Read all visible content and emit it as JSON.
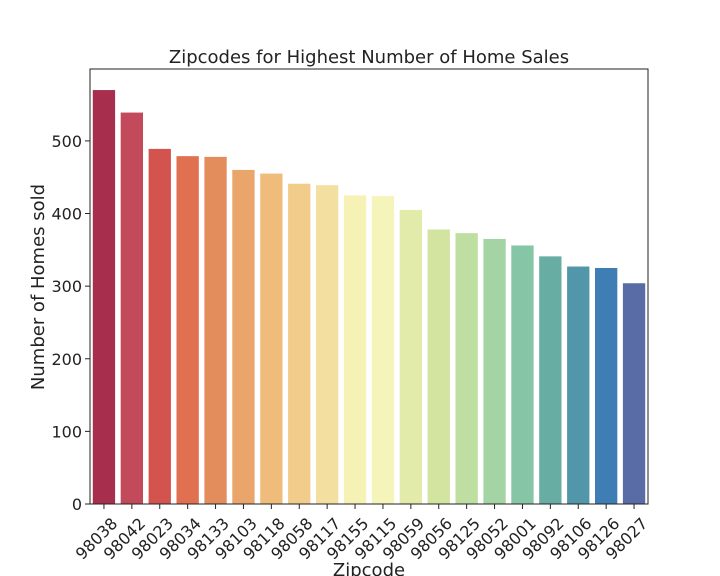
{
  "chart_data": {
    "type": "bar",
    "title": "Zipcodes for Highest Number of Home Sales",
    "xlabel": "Zipcode",
    "ylabel": "Number of Homes sold",
    "categories": [
      "98038",
      "98042",
      "98023",
      "98034",
      "98133",
      "98103",
      "98118",
      "98058",
      "98117",
      "98155",
      "98115",
      "98059",
      "98056",
      "98125",
      "98052",
      "98001",
      "98092",
      "98106",
      "98126",
      "98027"
    ],
    "values": [
      570,
      539,
      489,
      479,
      478,
      460,
      455,
      441,
      439,
      425,
      424,
      405,
      378,
      373,
      365,
      356,
      341,
      327,
      325,
      304
    ],
    "yticks": [
      0,
      100,
      200,
      300,
      400,
      500
    ],
    "ylim": [
      0,
      599
    ],
    "grid": false,
    "colors": [
      "#a72e4d",
      "#c34a5a",
      "#d3544e",
      "#e0704f",
      "#e38c5c",
      "#e9a56a",
      "#efbc7c",
      "#f2cc8a",
      "#f3e0a1",
      "#f6f1b5",
      "#f4f4bb",
      "#e3ebaa",
      "#d3e4a0",
      "#bfdea2",
      "#a5d4a4",
      "#86c5a5",
      "#68ada4",
      "#5296aa",
      "#3f7db5",
      "#596ca5"
    ]
  }
}
